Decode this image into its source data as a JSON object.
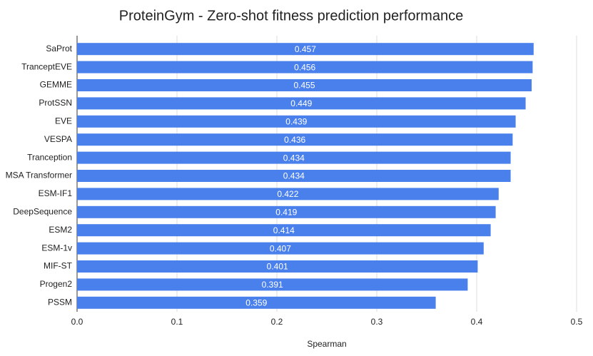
{
  "chart_data": {
    "type": "hbar",
    "title": "ProteinGym - Zero-shot fitness prediction performance",
    "x_label": "Spearman",
    "categories": [
      "SaProt",
      "TranceptEVE",
      "GEMME",
      "ProtSSN",
      "EVE",
      "VESPA",
      "Tranception",
      "MSA Transformer",
      "ESM-IF1",
      "DeepSequence",
      "ESM2",
      "ESM-1v",
      "MIF-ST",
      "Progen2",
      "PSSM"
    ],
    "values": [
      0.457,
      0.456,
      0.455,
      0.449,
      0.439,
      0.436,
      0.434,
      0.434,
      0.422,
      0.419,
      0.414,
      0.407,
      0.401,
      0.391,
      0.359
    ],
    "color": "#4a80ec",
    "xlim": [
      0,
      0.5
    ],
    "xticks": [
      {
        "value": 0,
        "label": "0.0"
      },
      0.1,
      0.2,
      0.3,
      0.4,
      0.5
    ],
    "grid": true
  }
}
